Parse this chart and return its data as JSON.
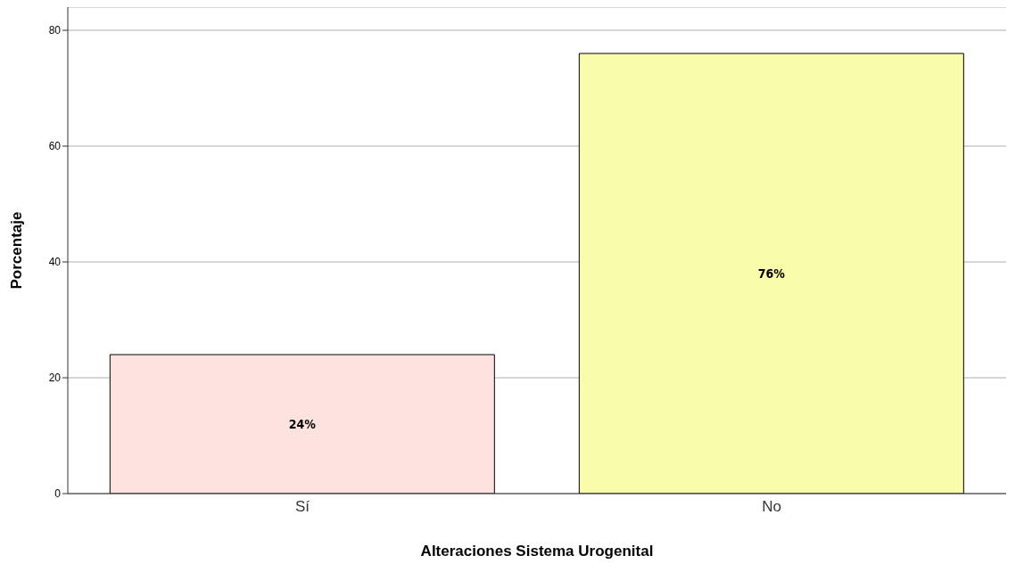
{
  "chart_data": {
    "type": "bar",
    "xlabel": "Alteraciones Sistema Urogenital",
    "ylabel": "Porcentaje",
    "categories": [
      "Sí",
      "No"
    ],
    "values": [
      24,
      76
    ],
    "colors": [
      "#fde3e0",
      "#f8fcab"
    ],
    "value_labels": [
      "24%",
      "76%"
    ],
    "ylim": [
      0,
      84
    ],
    "yticks": [
      0,
      20,
      40,
      60,
      80
    ],
    "grid": "y"
  }
}
